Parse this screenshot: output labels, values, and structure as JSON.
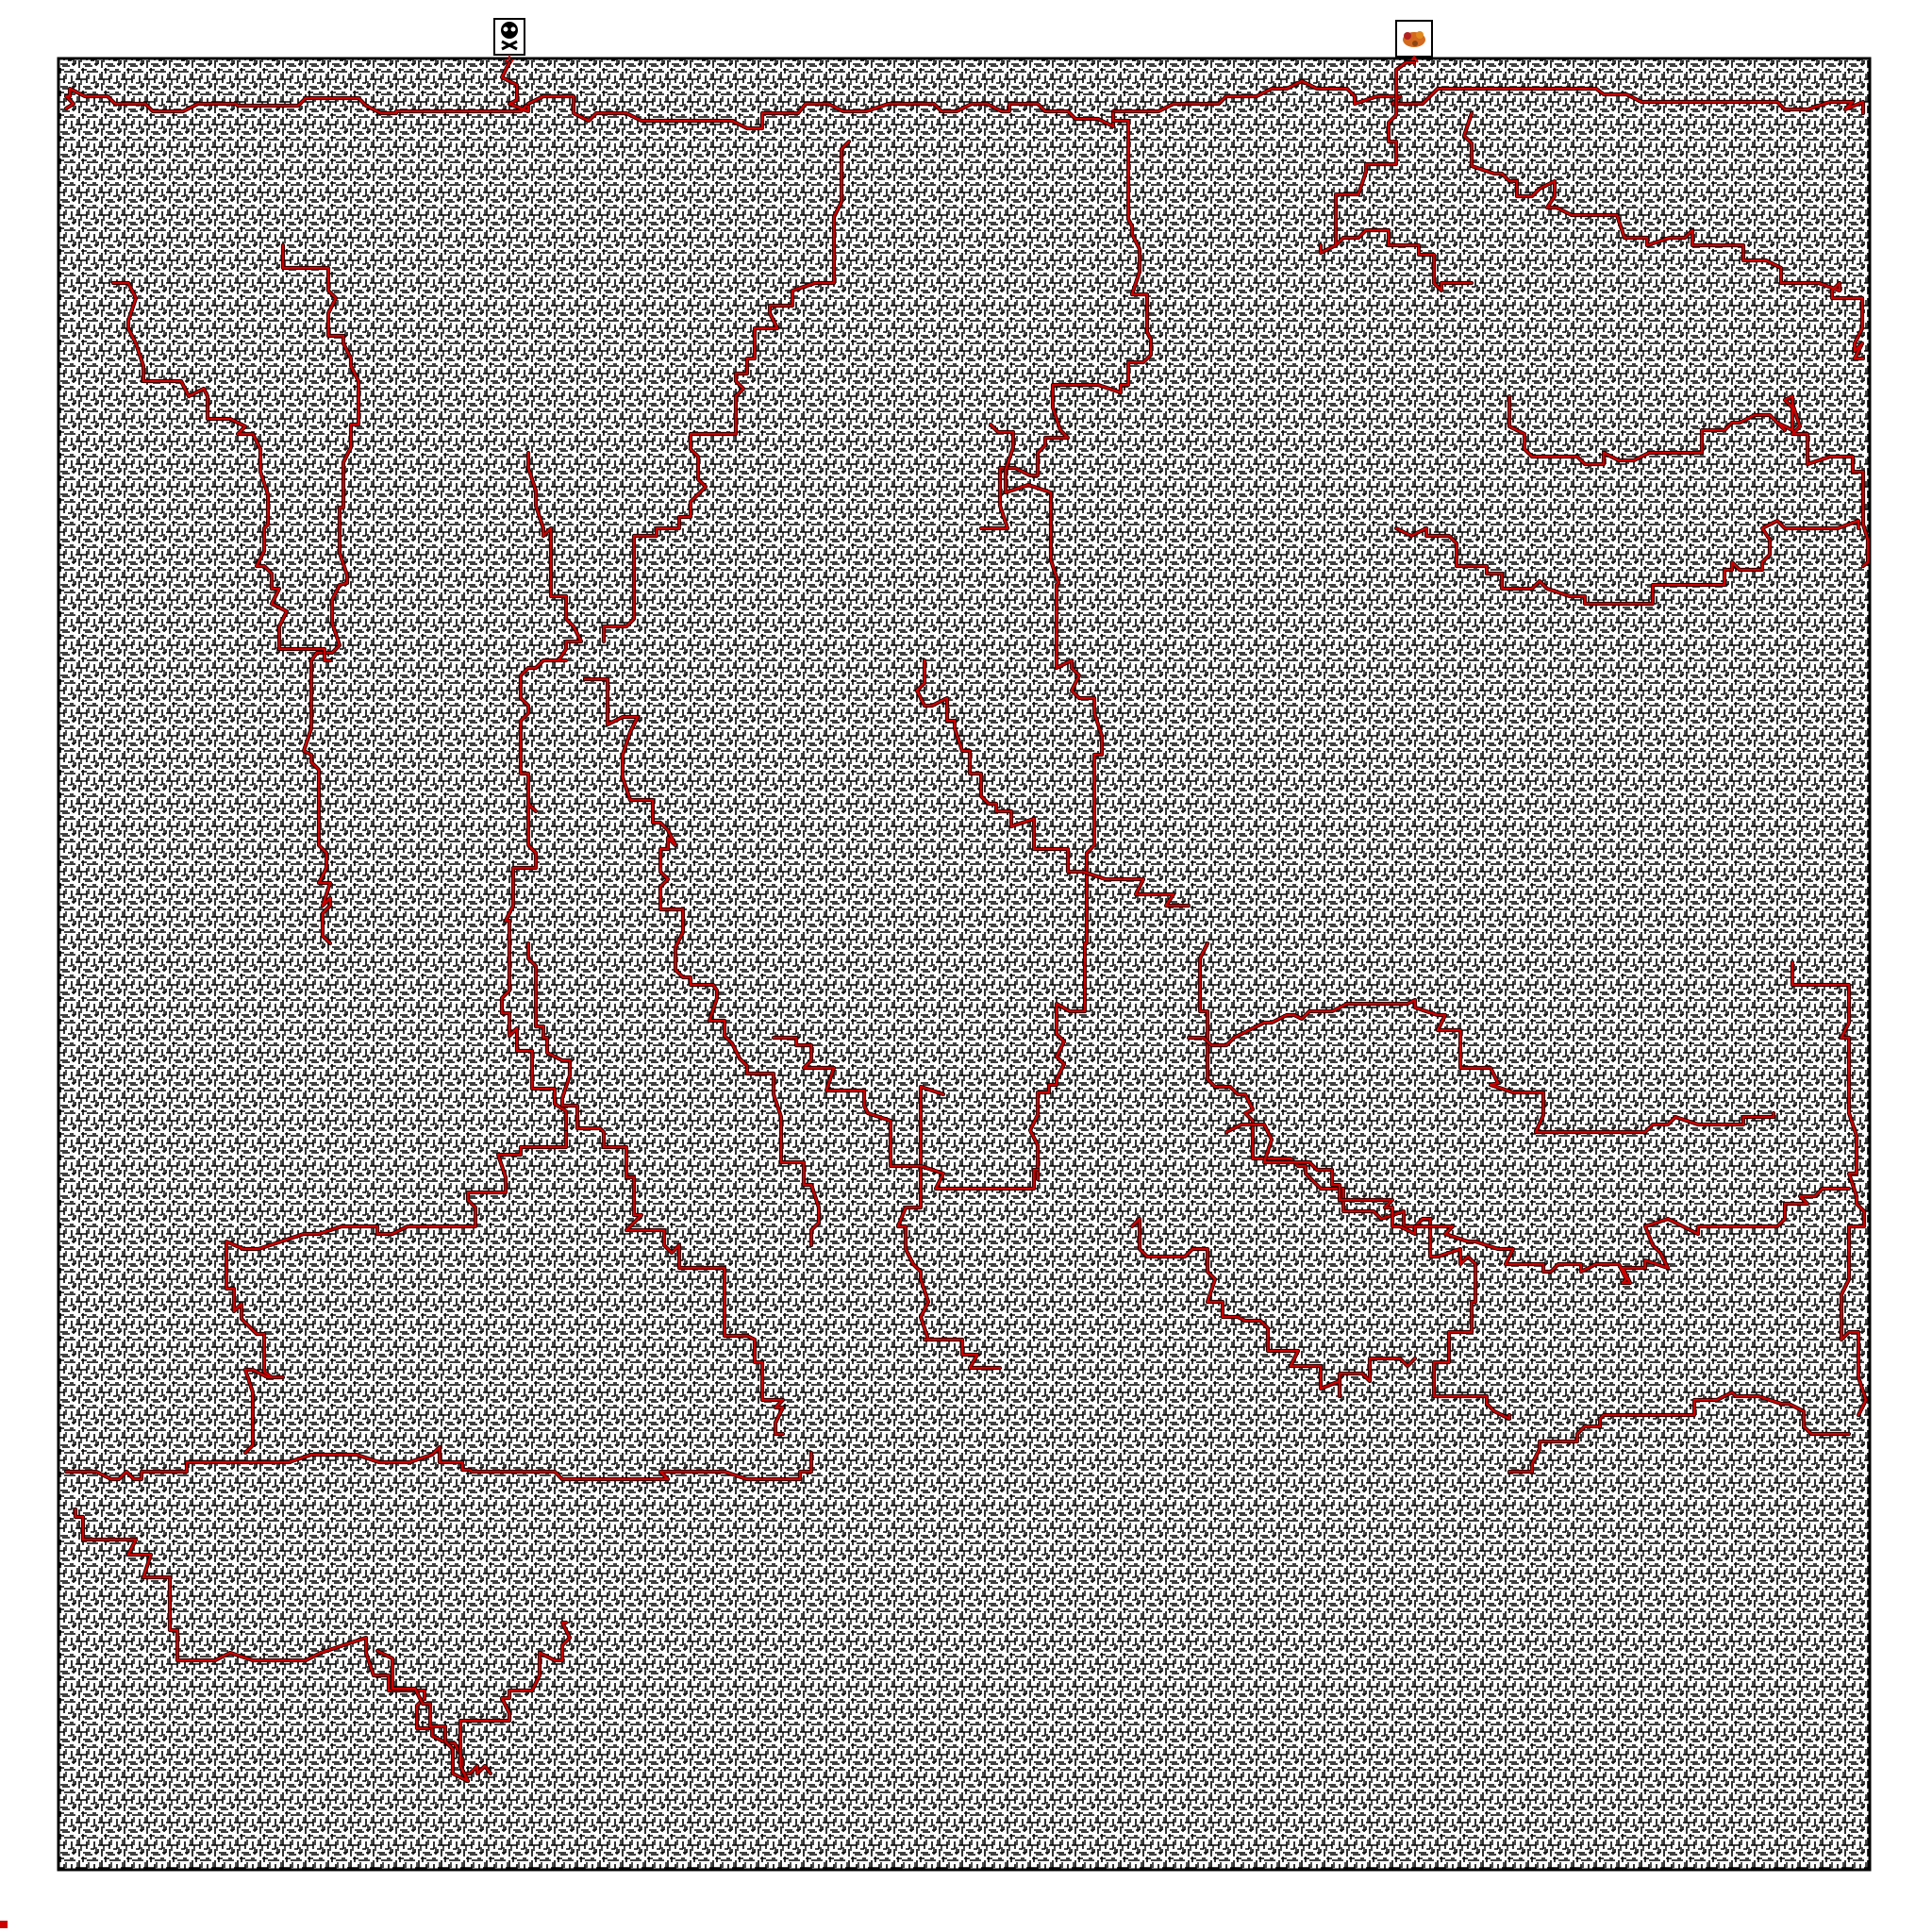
{
  "maze": {
    "start_icon": "skull-icon",
    "goal_icon": "autumn-leaf-pile-icon",
    "wall_color": "#000000",
    "path_color": "#cc0000",
    "path_outline_color": "#000000",
    "background_color": "#ffffff"
  }
}
